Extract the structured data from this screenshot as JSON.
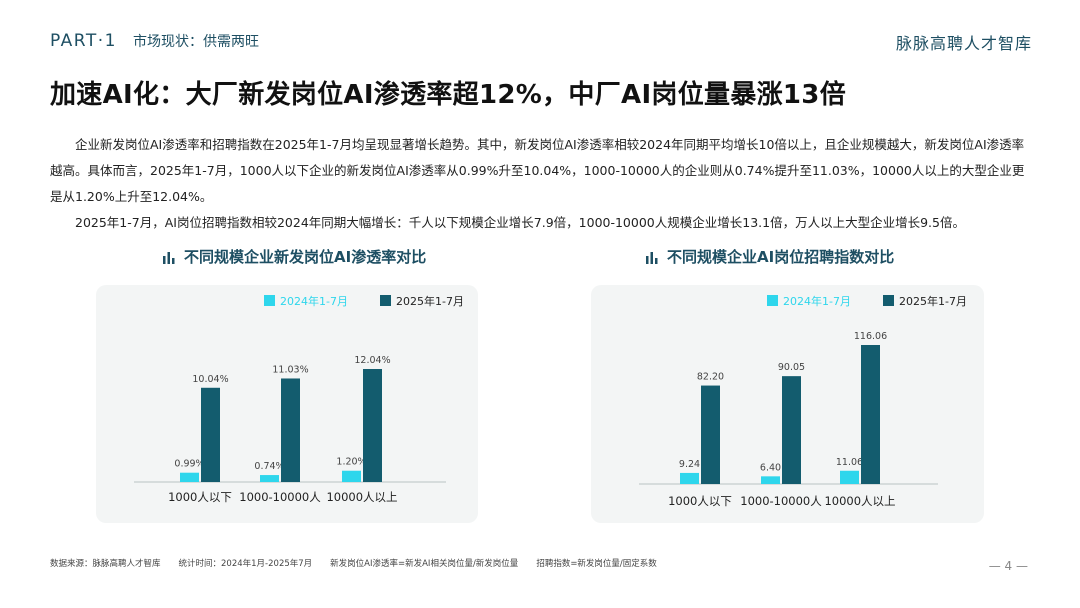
{
  "header": {
    "part": "PART·1",
    "section": "市场现状：供需两旺",
    "brand": "脉脉高聘人才智库"
  },
  "headline": "加速AI化：大厂新发岗位AI渗透率超12%，中厂AI岗位量暴涨13倍",
  "body": {
    "para1": "企业新发岗位AI渗透率和招聘指数在2025年1-7月均呈现显著增长趋势。其中，新发岗位AI渗透率相较2024年同期平均增长10倍以上，且企业规模越大，新发岗位AI渗透率越高。具体而言，2025年1-7月，1000人以下企业的新发岗位AI渗透率从0.99%升至10.04%，1000-10000人的企业则从0.74%提升至11.03%，10000人以上的大型企业更是从1.20%上升至12.04%。",
    "para2": "2025年1-7月，AI岗位招聘指数相较2024年同期大幅增长：千人以下规模企业增长7.9倍，1000-10000人规模企业增长13.1倍，万人以上大型企业增长9.5倍。"
  },
  "colors": {
    "series_2024": "#2ed6ec",
    "series_2025": "#135c6e",
    "accent": "#1e4f63"
  },
  "chart_data": [
    {
      "type": "bar",
      "title": "不同规模企业新发岗位AI渗透率对比",
      "categories": [
        "1000人以下",
        "1000-10000人",
        "10000人以上"
      ],
      "series": [
        {
          "name": "2024年1-7月",
          "values": [
            0.99,
            0.74,
            1.2
          ],
          "labels": [
            "0.99%",
            "0.74%",
            "1.20%"
          ]
        },
        {
          "name": "2025年1-7月",
          "values": [
            10.04,
            11.03,
            12.04
          ],
          "labels": [
            "10.04%",
            "11.03%",
            "12.04%"
          ]
        }
      ],
      "ylim": [
        0,
        12.04
      ],
      "legend": "top",
      "grid": false
    },
    {
      "type": "bar",
      "title": "不同规模企业AI岗位招聘指数对比",
      "categories": [
        "1000人以下",
        "1000-10000人",
        "10000人以上"
      ],
      "series": [
        {
          "name": "2024年1-7月",
          "values": [
            9.24,
            6.4,
            11.06
          ],
          "labels": [
            "9.24",
            "6.40",
            "11.06"
          ]
        },
        {
          "name": "2025年1-7月",
          "values": [
            82.2,
            90.05,
            116.06
          ],
          "labels": [
            "82.20",
            "90.05",
            "116.06"
          ]
        }
      ],
      "ylim": [
        0,
        116.06
      ],
      "legend": "top",
      "grid": false
    }
  ],
  "footer": {
    "source": "数据来源：脉脉高聘人才智库",
    "period": "统计时间：2024年1月-2025年7月",
    "def_penetration": "新发岗位AI渗透率=新发AI相关岗位量/新发岗位量",
    "def_index": "招聘指数=新发岗位量/固定系数"
  },
  "page_number": "— 4 —"
}
